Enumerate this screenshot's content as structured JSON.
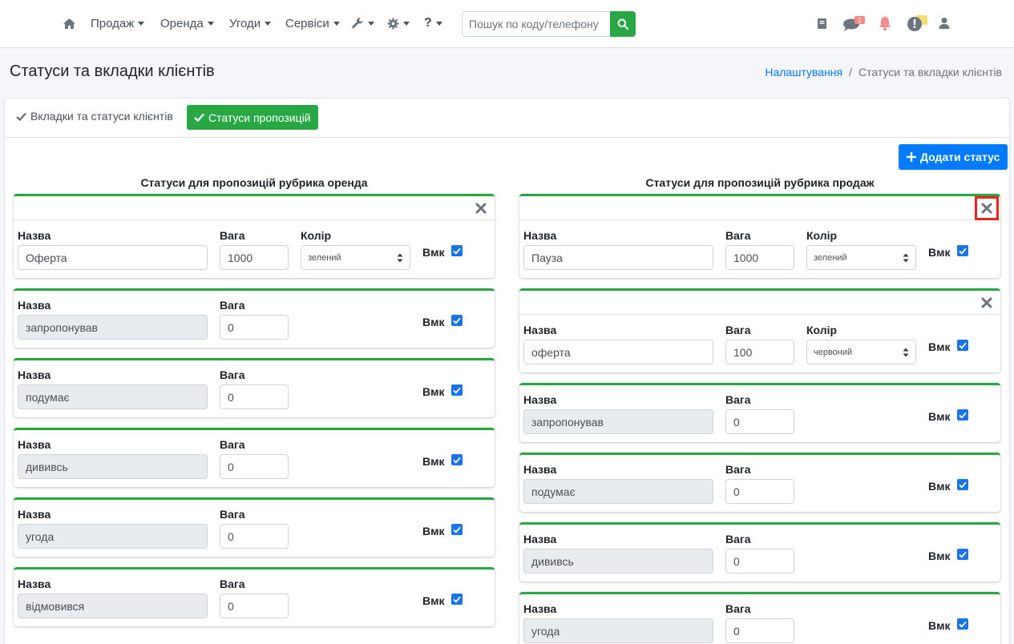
{
  "nav": {
    "items": [
      {
        "label": "Продаж",
        "dropdown": true
      },
      {
        "label": "Оренда",
        "dropdown": true
      },
      {
        "label": "Угоди",
        "dropdown": true
      },
      {
        "label": "Сервіси",
        "dropdown": true
      }
    ],
    "icons": [
      "home-icon",
      "wrench-icon",
      "gear-icon",
      "question-icon",
      "book-icon",
      "comments-icon",
      "bell-icon",
      "alert-icon",
      "user-icon"
    ],
    "search_placeholder": "Пошук по коду/телефону",
    "question_label": "?"
  },
  "page": {
    "title": "Статуси та вкладки клієнтів",
    "breadcrumb": [
      "Налаштування",
      "Статуси та вкладки клієнтів"
    ],
    "breadcrumb_sep": "/"
  },
  "tabs": {
    "clients": "Вкладки та статуси клієнтів",
    "proposals": "Статуси пропозицій"
  },
  "add_button": "Додати статус",
  "labels": {
    "name": "Назва",
    "weight": "Вага",
    "color": "Колір",
    "enabled": "Вмк"
  },
  "columns": [
    {
      "title": "Статуси для пропозицій рубрика оренда",
      "statuses": [
        {
          "name": "Оферта",
          "weight": "1000",
          "color": "зелений",
          "enabled": true,
          "editable": true
        },
        {
          "name": "запропонував",
          "weight": "0",
          "enabled": true,
          "editable": false
        },
        {
          "name": "подумає",
          "weight": "0",
          "enabled": true,
          "editable": false
        },
        {
          "name": "дививсь",
          "weight": "0",
          "enabled": true,
          "editable": false
        },
        {
          "name": "угода",
          "weight": "0",
          "enabled": true,
          "editable": false
        },
        {
          "name": "відмовився",
          "weight": "0",
          "enabled": true,
          "editable": false
        }
      ]
    },
    {
      "title": "Статуси для пропозицій рубрика продаж",
      "statuses": [
        {
          "name": "Пауза",
          "weight": "1000",
          "color": "зелений",
          "enabled": true,
          "editable": true
        },
        {
          "name": "оферта",
          "weight": "100",
          "color": "червоний",
          "enabled": true,
          "editable": true
        },
        {
          "name": "запропонував",
          "weight": "0",
          "enabled": true,
          "editable": false
        },
        {
          "name": "подумає",
          "weight": "0",
          "enabled": true,
          "editable": false
        },
        {
          "name": "дививсь",
          "weight": "0",
          "enabled": true,
          "editable": false
        },
        {
          "name": "угода",
          "weight": "0",
          "enabled": true,
          "editable": false
        }
      ]
    }
  ],
  "colors": {
    "accent_green": "#28a745",
    "primary_blue": "#007bff",
    "highlight_red": "#e8261b",
    "checkbox_blue": "#1a73e8"
  }
}
